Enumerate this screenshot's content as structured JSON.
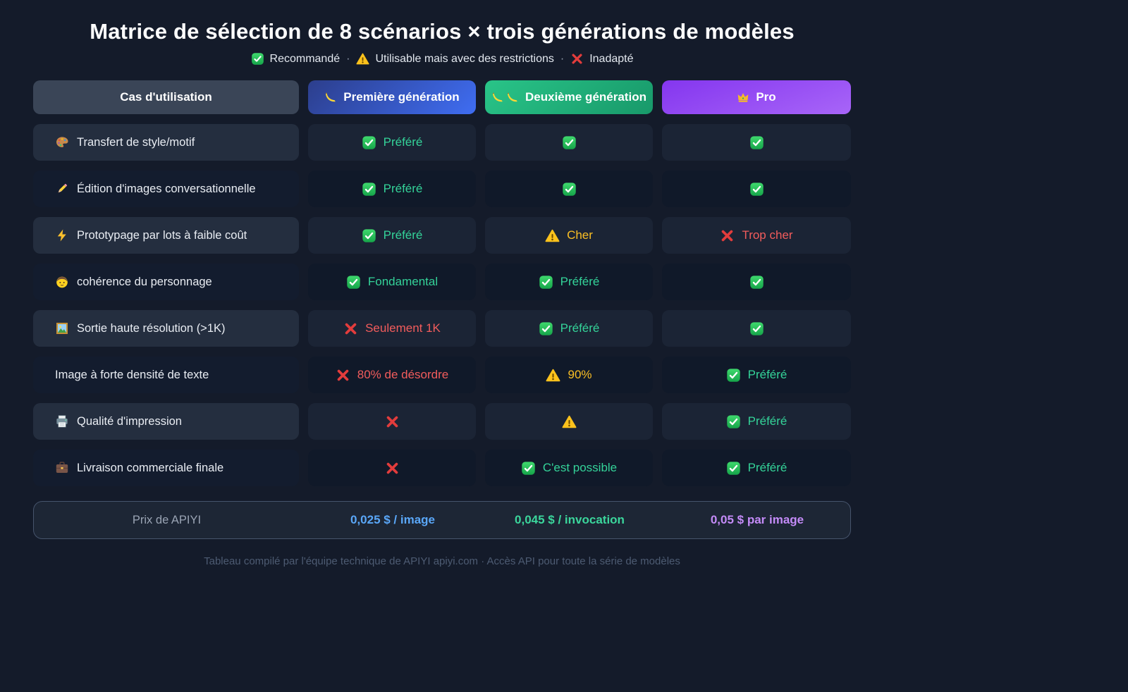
{
  "page": {
    "title": "Matrice de sélection de 8 scénarios × trois générations de modèles",
    "background": "#141b2a"
  },
  "legend": {
    "separator": "·",
    "items": [
      {
        "icon": "check-icon",
        "label": "Recommandé"
      },
      {
        "icon": "warning-icon",
        "label": "Utilisable mais avec des restrictions"
      },
      {
        "icon": "cross-icon",
        "label": "Inadapté"
      }
    ]
  },
  "table": {
    "columns": [
      {
        "id": "use-case",
        "label": "Cas d'utilisation",
        "icons": [],
        "accent": "#3a4557"
      },
      {
        "id": "gen1",
        "label": "Première génération",
        "icons": [
          "banana-icon"
        ],
        "accent": "#3f6df2"
      },
      {
        "id": "gen2",
        "label": "Deuxième génération",
        "icons": [
          "banana-icon",
          "banana-icon"
        ],
        "accent": "#1fb276"
      },
      {
        "id": "pro",
        "label": "Pro",
        "icons": [
          "crown-icon"
        ],
        "accent": "#9a55f5"
      }
    ],
    "rows": [
      {
        "icon": "palette-icon",
        "label": "Transfert de style/motif",
        "cells": [
          {
            "status": "check",
            "text": "Préféré"
          },
          {
            "status": "check",
            "text": ""
          },
          {
            "status": "check",
            "text": ""
          }
        ]
      },
      {
        "icon": "pencil-icon",
        "label": "Édition d'images conversationnelle",
        "cells": [
          {
            "status": "check",
            "text": "Préféré"
          },
          {
            "status": "check",
            "text": ""
          },
          {
            "status": "check",
            "text": ""
          }
        ]
      },
      {
        "icon": "bolt-icon",
        "label": "Prototypage par lots à faible coût",
        "cells": [
          {
            "status": "check",
            "text": "Préféré"
          },
          {
            "status": "warning",
            "text": "Cher"
          },
          {
            "status": "cross",
            "text": "Trop cher"
          }
        ]
      },
      {
        "icon": "boy-icon",
        "label": "cohérence du personnage",
        "cells": [
          {
            "status": "check",
            "text": "Fondamental"
          },
          {
            "status": "check",
            "text": "Préféré"
          },
          {
            "status": "check",
            "text": ""
          }
        ]
      },
      {
        "icon": "picture-icon",
        "label": "Sortie haute résolution (>1K)",
        "cells": [
          {
            "status": "cross",
            "text": "Seulement 1K"
          },
          {
            "status": "check",
            "text": "Préféré"
          },
          {
            "status": "check",
            "text": ""
          }
        ]
      },
      {
        "icon": "",
        "label": "Image à forte densité de texte",
        "cells": [
          {
            "status": "cross",
            "text": "80% de désordre"
          },
          {
            "status": "warning",
            "text": "90%"
          },
          {
            "status": "check",
            "text": "Préféré"
          }
        ]
      },
      {
        "icon": "printer-icon",
        "label": "Qualité d'impression",
        "cells": [
          {
            "status": "cross",
            "text": ""
          },
          {
            "status": "warning",
            "text": ""
          },
          {
            "status": "check",
            "text": "Préféré"
          }
        ]
      },
      {
        "icon": "briefcase-icon",
        "label": "Livraison commerciale finale",
        "cells": [
          {
            "status": "cross",
            "text": ""
          },
          {
            "status": "check",
            "text": "C'est possible"
          },
          {
            "status": "check",
            "text": "Préféré"
          }
        ]
      }
    ]
  },
  "status_colors": {
    "check": "#34d399",
    "warning": "#fbbf24",
    "cross": "#f25c5c"
  },
  "pricing": {
    "label": "Prix de APIYI",
    "values": [
      {
        "text": "0,025 $ / image",
        "color": "#5aa7f8"
      },
      {
        "text": "0,045 $ / invocation",
        "color": "#3bd69c"
      },
      {
        "text": "0,05 $ par image",
        "color": "#c48bf8"
      }
    ]
  },
  "footer": {
    "text": "Tableau compilé par l'équipe technique de APIYI apiyi.com · Accès API pour toute la série de modèles"
  },
  "chart_data": {
    "type": "table",
    "title": "Matrice de sélection de 8 scénarios × trois générations de modèles",
    "legend": [
      "✅ Recommandé",
      "⚠️ Utilisable mais avec des restrictions",
      "❌ Inadapté"
    ],
    "columns": [
      "Cas d'utilisation",
      "🍌 Première génération",
      "🍌🍌 Deuxième génération",
      "👑 Pro"
    ],
    "rows": [
      [
        "🎨 Transfert de style/motif",
        "✅ Préféré",
        "✅",
        "✅"
      ],
      [
        "✏️ Édition d'images conversationnelle",
        "✅ Préféré",
        "✅",
        "✅"
      ],
      [
        "⚡ Prototypage par lots à faible coût",
        "✅ Préféré",
        "⚠️ Cher",
        "❌ Trop cher"
      ],
      [
        "👦 cohérence du personnage",
        "✅ Fondamental",
        "✅ Préféré",
        "✅"
      ],
      [
        "🖼️ Sortie haute résolution (>1K)",
        "❌ Seulement 1K",
        "✅ Préféré",
        "✅"
      ],
      [
        "Image à forte densité de texte",
        "❌ 80% de désordre",
        "⚠️ 90%",
        "✅ Préféré"
      ],
      [
        "🖨️ Qualité d'impression",
        "❌",
        "⚠️",
        "✅ Préféré"
      ],
      [
        "💼 Livraison commerciale finale",
        "❌",
        "✅ C'est possible",
        "✅ Préféré"
      ]
    ],
    "footer_row": [
      "Prix de APIYI",
      "0,025 $ / image",
      "0,045 $ / invocation",
      "0,05 $ par image"
    ]
  }
}
